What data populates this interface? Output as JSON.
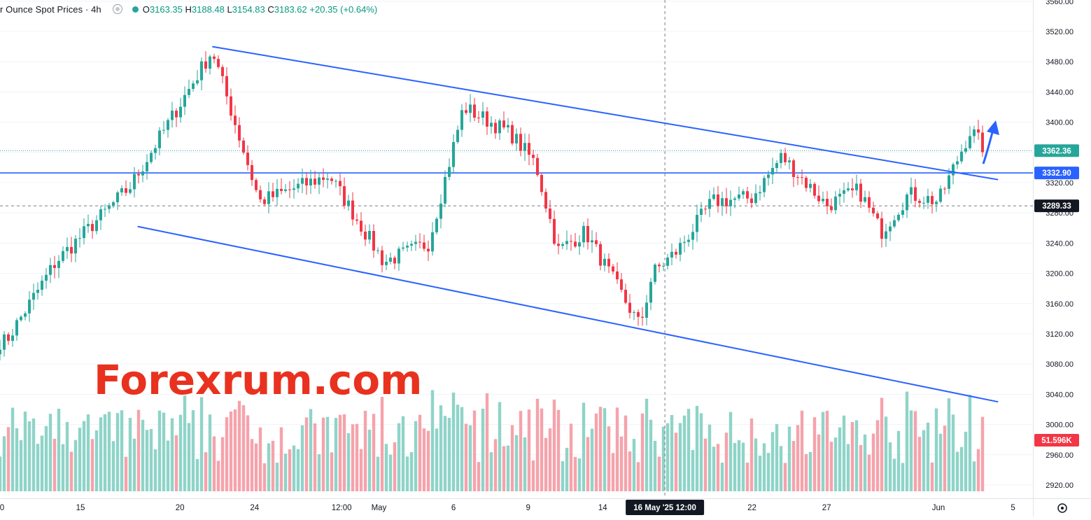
{
  "header": {
    "title": "r Ounce Spot Prices · 4h",
    "ohlc": {
      "open_label": "O",
      "open": "3163.35",
      "high_label": "H",
      "high": "3188.48",
      "low_label": "L",
      "low": "3154.83",
      "close_label": "C",
      "close": "3183.62",
      "change": "+20.35 (+0.64%)"
    }
  },
  "watermark": "Forexrum.com",
  "colors": {
    "up": "#26a69a",
    "down": "#f23645",
    "up_volume": "#8fd4c8",
    "down_volume": "#f5a3ab",
    "trendline": "#2962ff",
    "arrow": "#2962ff",
    "watermark_fill": "#e8321f",
    "watermark_stroke": "#ffffff"
  },
  "chart_data": {
    "type": "candlestick",
    "timeframe": "4h",
    "ylim": [
      2895,
      3565
    ],
    "y_ticks": [
      2920,
      2960,
      3000,
      3040,
      3080,
      3120,
      3160,
      3200,
      3240,
      3280,
      3320,
      3360,
      3400,
      3440,
      3480,
      3520,
      3560
    ],
    "y_tick_labels": [
      "2920.00",
      "2960.00",
      "3000.00",
      "3040.00",
      "3080.00",
      "3120.00",
      "3160.00",
      "3200.00",
      "3240.00",
      "3280.00",
      "3320.00",
      "3360.00",
      "3400.00",
      "3440.00",
      "3480.00",
      "3520.00",
      "3560.00"
    ],
    "x_ticks": [
      "0",
      "15",
      "20",
      "24",
      "12:00",
      "May",
      "6",
      "9",
      "14",
      "22",
      "27",
      "Jun",
      "5"
    ],
    "crosshair_label": "16 May '25   12:00",
    "price_labels": {
      "last_price": "3362.36",
      "horizontal_level": "3332.90",
      "crosshair_price": "3289.33",
      "volume": "51.596K"
    },
    "levels": {
      "last_price": 3362.36,
      "horizontal_level": 3332.9,
      "crosshair_price": 3289.33
    },
    "trendlines": [
      {
        "name": "upper-channel",
        "from": [
          "2025-04-22",
          3500
        ],
        "to": [
          "2025-06-03",
          3324
        ]
      },
      {
        "name": "lower-channel",
        "from": [
          "2025-04-17",
          3262
        ],
        "to": [
          "2025-06-03",
          3030
        ]
      }
    ],
    "anchors": [
      {
        "label": "10",
        "value": 3110
      },
      {
        "label": "14",
        "value": 3215
      },
      {
        "label": "17",
        "value": 3315
      },
      {
        "label": "22",
        "value": 3495
      },
      {
        "label": "24",
        "value": 3295
      },
      {
        "label": "29",
        "value": 3330
      },
      {
        "label": "May 1",
        "value": 3215
      },
      {
        "label": "4",
        "value": 3240
      },
      {
        "label": "6",
        "value": 3420
      },
      {
        "label": "8",
        "value": 3385
      },
      {
        "label": "10",
        "value": 3345
      },
      {
        "label": "12",
        "value": 3230
      },
      {
        "label": "13",
        "value": 3255
      },
      {
        "label": "15",
        "value": 3130
      },
      {
        "label": "16",
        "value": 3200
      },
      {
        "label": "18",
        "value": 3230
      },
      {
        "label": "20",
        "value": 3295
      },
      {
        "label": "22",
        "value": 3300
      },
      {
        "label": "24",
        "value": 3355
      },
      {
        "label": "27",
        "value": 3290
      },
      {
        "label": "28",
        "value": 3310
      },
      {
        "label": "29",
        "value": 3255
      },
      {
        "label": "30",
        "value": 3305
      },
      {
        "label": "Jun 1",
        "value": 3295
      },
      {
        "label": "2",
        "value": 3390
      },
      {
        "label": "3",
        "value": 3362
      }
    ]
  }
}
